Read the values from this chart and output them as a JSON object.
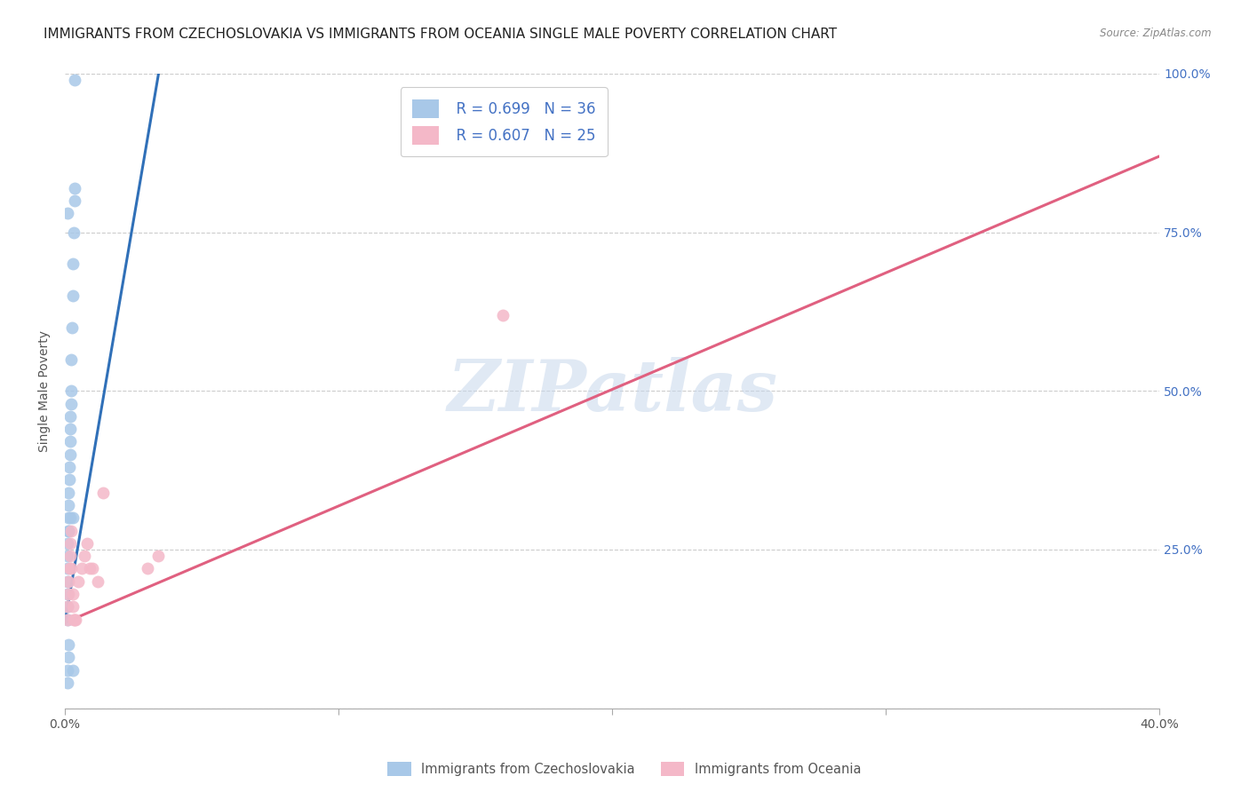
{
  "title": "IMMIGRANTS FROM CZECHOSLOVAKIA VS IMMIGRANTS FROM OCEANIA SINGLE MALE POVERTY CORRELATION CHART",
  "source": "Source: ZipAtlas.com",
  "ylabel": "Single Male Poverty",
  "legend_label1": "Immigrants from Czechoslovakia",
  "legend_label2": "Immigrants from Oceania",
  "legend_r1": "R = 0.699",
  "legend_n1": "N = 36",
  "legend_r2": "R = 0.607",
  "legend_n2": "N = 25",
  "xlim": [
    0.0,
    0.4
  ],
  "ylim": [
    0.0,
    1.0
  ],
  "xticks": [
    0.0,
    0.1,
    0.2,
    0.3,
    0.4
  ],
  "xtick_labels_show": [
    "0.0%",
    "",
    "",
    "",
    "40.0%"
  ],
  "yticks": [
    0.0,
    0.25,
    0.5,
    0.75,
    1.0
  ],
  "yticklabels_right": [
    "",
    "25.0%",
    "50.0%",
    "75.0%",
    "100.0%"
  ],
  "color_blue": "#a8c8e8",
  "color_pink": "#f4b8c8",
  "line_blue": "#3070b8",
  "line_pink": "#e06080",
  "blue_scatter_x": [
    0.0008,
    0.0008,
    0.0008,
    0.001,
    0.001,
    0.001,
    0.001,
    0.0012,
    0.0012,
    0.0014,
    0.0014,
    0.0016,
    0.0016,
    0.0018,
    0.0018,
    0.002,
    0.002,
    0.0022,
    0.0022,
    0.0024,
    0.0026,
    0.0028,
    0.003,
    0.0032,
    0.0034,
    0.0036,
    0.001,
    0.0012,
    0.002,
    0.0028,
    0.0008,
    0.001,
    0.0012,
    0.0014,
    0.003,
    0.0035
  ],
  "blue_scatter_y": [
    0.14,
    0.16,
    0.18,
    0.2,
    0.22,
    0.24,
    0.26,
    0.28,
    0.3,
    0.32,
    0.34,
    0.36,
    0.38,
    0.4,
    0.42,
    0.44,
    0.46,
    0.48,
    0.5,
    0.55,
    0.6,
    0.65,
    0.7,
    0.75,
    0.8,
    0.82,
    0.78,
    0.28,
    0.3,
    0.3,
    0.04,
    0.06,
    0.08,
    0.1,
    0.06,
    0.99
  ],
  "pink_scatter_x": [
    0.0008,
    0.001,
    0.0012,
    0.0014,
    0.0016,
    0.0018,
    0.002,
    0.0022,
    0.0024,
    0.0028,
    0.003,
    0.0032,
    0.0034,
    0.004,
    0.005,
    0.006,
    0.007,
    0.008,
    0.009,
    0.01,
    0.012,
    0.014,
    0.03,
    0.034,
    0.16
  ],
  "pink_scatter_y": [
    0.14,
    0.16,
    0.18,
    0.2,
    0.22,
    0.24,
    0.26,
    0.28,
    0.22,
    0.18,
    0.16,
    0.14,
    0.14,
    0.14,
    0.2,
    0.22,
    0.24,
    0.26,
    0.22,
    0.22,
    0.2,
    0.34,
    0.22,
    0.24,
    0.62
  ],
  "blue_line_x": [
    0.0,
    0.035
  ],
  "blue_line_y": [
    0.135,
    1.02
  ],
  "pink_line_x": [
    0.0,
    0.4
  ],
  "pink_line_y": [
    0.135,
    0.87
  ],
  "watermark_text": "ZIPatlas",
  "background_color": "#ffffff",
  "grid_color": "#cccccc",
  "title_fontsize": 11,
  "axis_label_fontsize": 10,
  "tick_fontsize": 10,
  "legend_fontsize": 12
}
